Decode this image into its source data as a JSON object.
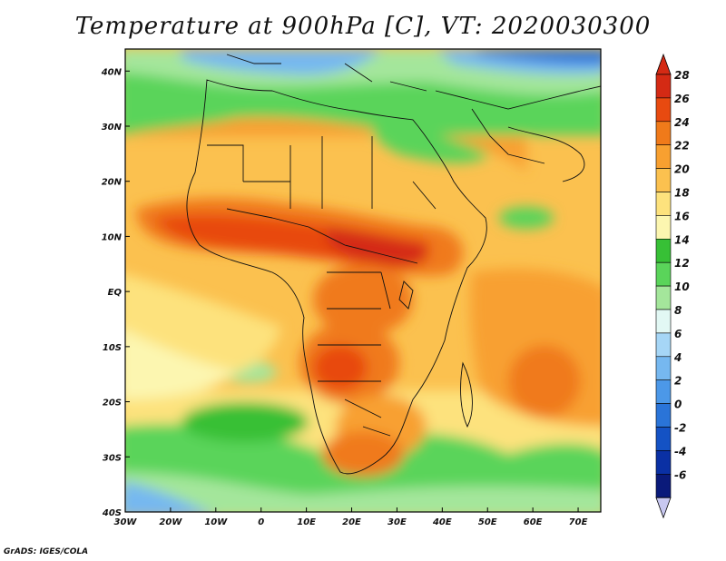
{
  "title": "Temperature at 900hPa [C], VT: 2020030300",
  "footer": "GrADS: IGES/COLA",
  "map": {
    "lon_range": [
      -30,
      75
    ],
    "lat_range": [
      -40,
      44
    ],
    "lon_ticks": [
      {
        "value": -30,
        "label": "30W"
      },
      {
        "value": -20,
        "label": "20W"
      },
      {
        "value": -10,
        "label": "10W"
      },
      {
        "value": 0,
        "label": "0"
      },
      {
        "value": 10,
        "label": "10E"
      },
      {
        "value": 20,
        "label": "20E"
      },
      {
        "value": 30,
        "label": "30E"
      },
      {
        "value": 40,
        "label": "40E"
      },
      {
        "value": 50,
        "label": "50E"
      },
      {
        "value": 60,
        "label": "60E"
      },
      {
        "value": 70,
        "label": "70E"
      }
    ],
    "lat_ticks": [
      {
        "value": 40,
        "label": "40N"
      },
      {
        "value": 30,
        "label": "30N"
      },
      {
        "value": 20,
        "label": "20N"
      },
      {
        "value": 10,
        "label": "10N"
      },
      {
        "value": 0,
        "label": "EQ"
      },
      {
        "value": -10,
        "label": "10S"
      },
      {
        "value": -20,
        "label": "20S"
      },
      {
        "value": -30,
        "label": "30S"
      },
      {
        "value": -40,
        "label": "40S"
      }
    ]
  },
  "colorbar": {
    "levels": [
      {
        "label": "28",
        "color": "#d42a14"
      },
      {
        "label": "26",
        "color": "#e84a10"
      },
      {
        "label": "24",
        "color": "#f07a1a"
      },
      {
        "label": "22",
        "color": "#f8a030"
      },
      {
        "label": "20",
        "color": "#fbc14f"
      },
      {
        "label": "18",
        "color": "#fde27d"
      },
      {
        "label": "16",
        "color": "#fcf6b0"
      },
      {
        "label": "14",
        "color": "#37c036"
      },
      {
        "label": "12",
        "color": "#5ad45a"
      },
      {
        "label": "10",
        "color": "#a4e69b"
      },
      {
        "label": "8",
        "color": "#e2f8f4"
      },
      {
        "label": "6",
        "color": "#a6d6f6"
      },
      {
        "label": "4",
        "color": "#76b8f0"
      },
      {
        "label": "2",
        "color": "#4c98e8"
      },
      {
        "label": "0",
        "color": "#2a74d8"
      },
      {
        "label": "-2",
        "color": "#1452c4"
      },
      {
        "label": "-4",
        "color": "#0a30a4"
      },
      {
        "label": "-6",
        "color": "#0a1a7a"
      }
    ],
    "over_color": "#d42a14",
    "under_color": "#c8c8f0"
  }
}
